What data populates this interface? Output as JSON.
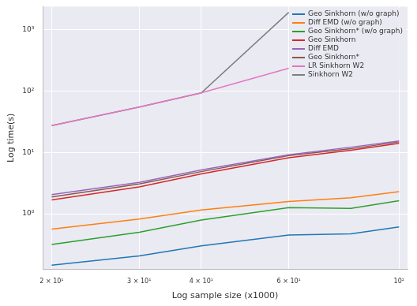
{
  "chart_data": {
    "type": "line",
    "x_label": "Log sample size (x1000)",
    "y_label": "Log time(s)",
    "x": [
      20,
      30,
      40,
      60,
      80,
      100
    ],
    "series": [
      {
        "name": "Geo Sinkhorn (w/o graph)",
        "color": "#1f77b4",
        "values": [
          0.145,
          0.205,
          0.3,
          0.45,
          0.47,
          0.61
        ]
      },
      {
        "name": "Diff EMD (w/o graph)",
        "color": "#ff7f0e",
        "values": [
          0.56,
          0.82,
          1.15,
          1.58,
          1.83,
          2.3
        ]
      },
      {
        "name": "Geo Sinkhorn* (w/o graph)",
        "color": "#2ca02c",
        "values": [
          0.316,
          0.5,
          0.79,
          1.26,
          1.22,
          1.63
        ]
      },
      {
        "name": "Geo Sinkhorn",
        "color": "#d62728",
        "values": [
          1.68,
          2.74,
          4.47,
          8.2,
          10.9,
          14.1
        ]
      },
      {
        "name": "Diff EMD",
        "color": "#9467bd",
        "values": [
          2.05,
          3.25,
          5.2,
          9.2,
          12.2,
          15.4
        ]
      },
      {
        "name": "Geo Sinkhorn*",
        "color": "#8c564b",
        "values": [
          1.88,
          3.07,
          4.87,
          8.9,
          11.5,
          14.9
        ]
      },
      {
        "name": "LR Sinkhorn W2",
        "color": "#e377c2",
        "values": [
          27.4,
          55,
          94,
          237,
          null,
          null
        ]
      },
      {
        "name": "Sinkhorn W2",
        "color": "#7f7f7f",
        "values": [
          27.4,
          55,
          94,
          1940,
          null,
          null
        ]
      }
    ],
    "log": true,
    "xlim": [
      19.2,
      104
    ],
    "ylim": [
      0.125,
      2400
    ],
    "xticks": [
      {
        "value": 20,
        "label": "2 × 10¹"
      },
      {
        "value": 30,
        "label": "3 × 10¹"
      },
      {
        "value": 40,
        "label": "4 × 10¹"
      },
      {
        "value": 60,
        "label": "6 × 10¹"
      },
      {
        "value": 100,
        "label": "10²"
      }
    ],
    "yticks": [
      {
        "value": 1,
        "label": "10⁰"
      },
      {
        "value": 10,
        "label": "10¹"
      },
      {
        "value": 100,
        "label": "10²"
      },
      {
        "value": 1000,
        "label": "10³"
      }
    ],
    "grid": true,
    "legend": "upper right"
  }
}
